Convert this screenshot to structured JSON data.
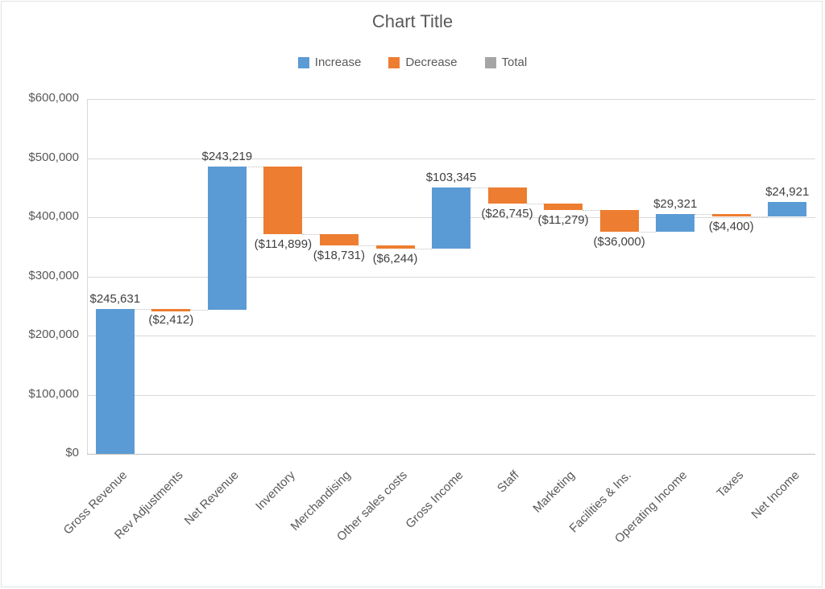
{
  "chart_data": {
    "type": "bar",
    "subtype": "waterfall",
    "title": "Chart Title",
    "legend": [
      {
        "label": "Increase",
        "color": "#5B9BD5"
      },
      {
        "label": "Decrease",
        "color": "#ED7D31"
      },
      {
        "label": "Total",
        "color": "#A5A5A5"
      }
    ],
    "colors": {
      "increase": "#5B9BD5",
      "decrease": "#ED7D31",
      "total": "#A5A5A5",
      "gridline": "#D9D9D9",
      "axis_text": "#595959",
      "data_label": "#404040"
    },
    "y_axis": {
      "min": 0,
      "max": 600000,
      "tick_step": 100000,
      "ticks": [
        {
          "value": 600000,
          "label": "$600,000"
        },
        {
          "value": 500000,
          "label": "$500,000"
        },
        {
          "value": 400000,
          "label": "$400,000"
        },
        {
          "value": 300000,
          "label": "$300,000"
        },
        {
          "value": 200000,
          "label": "$200,000"
        },
        {
          "value": 100000,
          "label": "$100,000"
        },
        {
          "value": 0,
          "label": "$0"
        }
      ]
    },
    "categories": [
      "Gross Revenue",
      "Rev Adjustments",
      "Net Revenue",
      "Inventory",
      "Merchandising",
      "Other sales costs",
      "Gross Income",
      "Staff",
      "Marketing",
      "Facilities & Ins.",
      "Operating Income",
      "Taxes",
      "Net Income"
    ],
    "bars": [
      {
        "category": "Gross Revenue",
        "value": 245631,
        "label": "$245,631",
        "type": "increase",
        "start": 0,
        "end": 245631
      },
      {
        "category": "Rev Adjustments",
        "value": -2412,
        "label": "($2,412)",
        "type": "decrease",
        "start": 245631,
        "end": 243219
      },
      {
        "category": "Net Revenue",
        "value": 243219,
        "label": "$243,219",
        "type": "increase",
        "start": 243219,
        "end": 486438
      },
      {
        "category": "Inventory",
        "value": -114899,
        "label": "($114,899)",
        "type": "decrease",
        "start": 486438,
        "end": 371539
      },
      {
        "category": "Merchandising",
        "value": -18731,
        "label": "($18,731)",
        "type": "decrease",
        "start": 371539,
        "end": 352808
      },
      {
        "category": "Other sales costs",
        "value": -6244,
        "label": "($6,244)",
        "type": "decrease",
        "start": 352808,
        "end": 346564
      },
      {
        "category": "Gross Income",
        "value": 103345,
        "label": "$103,345",
        "type": "increase",
        "start": 346564,
        "end": 449909
      },
      {
        "category": "Staff",
        "value": -26745,
        "label": "($26,745)",
        "type": "decrease",
        "start": 449909,
        "end": 423164
      },
      {
        "category": "Marketing",
        "value": -11279,
        "label": "($11,279)",
        "type": "decrease",
        "start": 423164,
        "end": 411885
      },
      {
        "category": "Facilities & Ins.",
        "value": -36000,
        "label": "($36,000)",
        "type": "decrease",
        "start": 411885,
        "end": 375885
      },
      {
        "category": "Operating Income",
        "value": 29321,
        "label": "$29,321",
        "type": "increase",
        "start": 375885,
        "end": 405206
      },
      {
        "category": "Taxes",
        "value": -4400,
        "label": "($4,400)",
        "type": "decrease",
        "start": 405206,
        "end": 400806
      },
      {
        "category": "Net Income",
        "value": 24921,
        "label": "$24,921",
        "type": "increase",
        "start": 400806,
        "end": 425727
      }
    ]
  }
}
